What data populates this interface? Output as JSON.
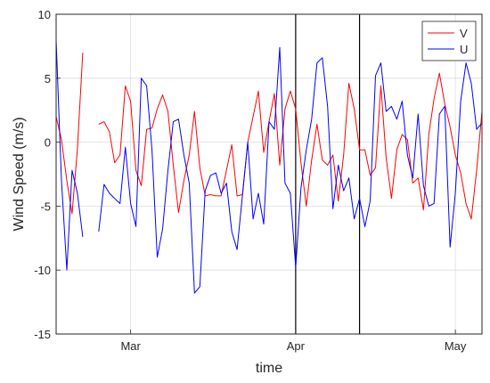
{
  "chart_data": {
    "type": "line",
    "title": "",
    "xlabel": "time",
    "ylabel": "Wind Speed (m/s)",
    "ylim": [
      -15,
      10
    ],
    "xlim": [
      "2016-02-16",
      "2016-05-06"
    ],
    "y_ticks": [
      -15,
      -10,
      -5,
      0,
      5,
      10
    ],
    "x_ticks": [
      {
        "date": "2016-03-01",
        "label": "Mar"
      },
      {
        "date": "2016-04-01",
        "label": "Apr"
      },
      {
        "date": "2016-05-01",
        "label": "May"
      }
    ],
    "grid": true,
    "legend": "top-right",
    "vertical_lines": [
      "2016-04-01",
      "2016-04-13"
    ],
    "series": [
      {
        "name": "V",
        "color": "#ff0000",
        "values": [
          [
            "2016-02-16",
            2.0
          ],
          [
            "2016-02-17",
            0.2
          ],
          [
            "2016-02-18",
            -3.0
          ],
          [
            "2016-02-19",
            -5.6
          ],
          [
            "2016-02-20",
            -0.5
          ],
          [
            "2016-02-21",
            7.0
          ],
          [
            "2016-02-23",
            null
          ],
          [
            "2016-02-24",
            1.4
          ],
          [
            "2016-02-25",
            1.6
          ],
          [
            "2016-02-26",
            0.8
          ],
          [
            "2016-02-27",
            -1.6
          ],
          [
            "2016-02-28",
            -1.0
          ],
          [
            "2016-02-29",
            4.4
          ],
          [
            "2016-03-01",
            3.2
          ],
          [
            "2016-03-02",
            -2.2
          ],
          [
            "2016-03-03",
            -3.4
          ],
          [
            "2016-03-04",
            1.0
          ],
          [
            "2016-03-05",
            1.1
          ],
          [
            "2016-03-06",
            2.6
          ],
          [
            "2016-03-07",
            3.7
          ],
          [
            "2016-03-08",
            2.4
          ],
          [
            "2016-03-09",
            -1.8
          ],
          [
            "2016-03-10",
            -5.5
          ],
          [
            "2016-03-11",
            -3.0
          ],
          [
            "2016-03-12",
            -1.0
          ],
          [
            "2016-03-13",
            2.4
          ],
          [
            "2016-03-14",
            -2.0
          ],
          [
            "2016-03-15",
            -4.2
          ],
          [
            "2016-03-16",
            -4.1
          ],
          [
            "2016-03-17",
            -4.2
          ],
          [
            "2016-03-18",
            -4.2
          ],
          [
            "2016-03-19",
            -2.2
          ],
          [
            "2016-03-20",
            -0.2
          ],
          [
            "2016-03-21",
            -4.2
          ],
          [
            "2016-03-22",
            -4.1
          ],
          [
            "2016-03-23",
            0.0
          ],
          [
            "2016-03-24",
            2.0
          ],
          [
            "2016-03-25",
            4.0
          ],
          [
            "2016-03-26",
            -0.8
          ],
          [
            "2016-03-27",
            1.6
          ],
          [
            "2016-03-28",
            3.8
          ],
          [
            "2016-03-29",
            -1.8
          ],
          [
            "2016-03-30",
            2.6
          ],
          [
            "2016-03-31",
            4.0
          ],
          [
            "2016-04-01",
            2.6
          ],
          [
            "2016-04-02",
            -1.6
          ],
          [
            "2016-04-03",
            -5.0
          ],
          [
            "2016-04-04",
            -1.4
          ],
          [
            "2016-04-05",
            1.4
          ],
          [
            "2016-04-06",
            -1.4
          ],
          [
            "2016-04-07",
            -1.8
          ],
          [
            "2016-04-08",
            -1.0
          ],
          [
            "2016-04-09",
            -4.6
          ],
          [
            "2016-04-10",
            -1.0
          ],
          [
            "2016-04-11",
            4.6
          ],
          [
            "2016-04-12",
            2.6
          ],
          [
            "2016-04-13",
            -0.6
          ],
          [
            "2016-04-14",
            -0.6
          ],
          [
            "2016-04-15",
            -2.6
          ],
          [
            "2016-04-16",
            -2.0
          ],
          [
            "2016-04-17",
            4.4
          ],
          [
            "2016-04-18",
            -1.2
          ],
          [
            "2016-04-19",
            -4.4
          ],
          [
            "2016-04-20",
            -0.6
          ],
          [
            "2016-04-21",
            0.6
          ],
          [
            "2016-04-22",
            0.2
          ],
          [
            "2016-04-23",
            -3.2
          ],
          [
            "2016-04-24",
            -2.8
          ],
          [
            "2016-04-25",
            -5.3
          ],
          [
            "2016-04-26",
            0.6
          ],
          [
            "2016-04-27",
            3.4
          ],
          [
            "2016-04-28",
            5.4
          ],
          [
            "2016-04-29",
            3.0
          ],
          [
            "2016-04-30",
            1.2
          ],
          [
            "2016-05-01",
            -1.0
          ],
          [
            "2016-05-02",
            -2.4
          ],
          [
            "2016-05-03",
            -4.8
          ],
          [
            "2016-05-04",
            -6.0
          ],
          [
            "2016-05-05",
            -2.2
          ],
          [
            "2016-05-06",
            2.4
          ]
        ]
      },
      {
        "name": "U",
        "color": "#0000ff",
        "values": [
          [
            "2016-02-16",
            8.0
          ],
          [
            "2016-02-17",
            -3.0
          ],
          [
            "2016-02-18",
            -10.0
          ],
          [
            "2016-02-19",
            -2.2
          ],
          [
            "2016-02-20",
            -4.0
          ],
          [
            "2016-02-21",
            -7.4
          ],
          [
            "2016-02-23",
            null
          ],
          [
            "2016-02-24",
            -7.0
          ],
          [
            "2016-02-25",
            -3.3
          ],
          [
            "2016-02-26",
            -4.0
          ],
          [
            "2016-02-27",
            -4.4
          ],
          [
            "2016-02-28",
            -4.8
          ],
          [
            "2016-02-29",
            -0.4
          ],
          [
            "2016-03-01",
            -4.8
          ],
          [
            "2016-03-02",
            -6.6
          ],
          [
            "2016-03-03",
            5.0
          ],
          [
            "2016-03-04",
            4.4
          ],
          [
            "2016-03-05",
            -0.6
          ],
          [
            "2016-03-06",
            -9.0
          ],
          [
            "2016-03-07",
            -6.8
          ],
          [
            "2016-03-08",
            -2.2
          ],
          [
            "2016-03-09",
            1.6
          ],
          [
            "2016-03-10",
            1.8
          ],
          [
            "2016-03-11",
            -1.0
          ],
          [
            "2016-03-12",
            -3.2
          ],
          [
            "2016-03-13",
            -11.8
          ],
          [
            "2016-03-14",
            -11.3
          ],
          [
            "2016-03-15",
            -3.8
          ],
          [
            "2016-03-16",
            -2.6
          ],
          [
            "2016-03-17",
            -2.4
          ],
          [
            "2016-03-18",
            -4.0
          ],
          [
            "2016-03-19",
            -3.2
          ],
          [
            "2016-03-20",
            -7.0
          ],
          [
            "2016-03-21",
            -8.4
          ],
          [
            "2016-03-22",
            -4.2
          ],
          [
            "2016-03-23",
            0.0
          ],
          [
            "2016-03-24",
            -6.0
          ],
          [
            "2016-03-25",
            -4.0
          ],
          [
            "2016-03-26",
            -6.4
          ],
          [
            "2016-03-27",
            1.6
          ],
          [
            "2016-03-28",
            1.0
          ],
          [
            "2016-03-29",
            7.4
          ],
          [
            "2016-03-30",
            -3.2
          ],
          [
            "2016-03-31",
            -4.0
          ],
          [
            "2016-04-01",
            -9.8
          ],
          [
            "2016-04-02",
            -3.6
          ],
          [
            "2016-04-03",
            -0.6
          ],
          [
            "2016-04-04",
            1.8
          ],
          [
            "2016-04-05",
            6.2
          ],
          [
            "2016-04-06",
            6.6
          ],
          [
            "2016-04-07",
            2.8
          ],
          [
            "2016-04-08",
            -5.2
          ],
          [
            "2016-04-09",
            -1.8
          ],
          [
            "2016-04-10",
            -3.8
          ],
          [
            "2016-04-11",
            -2.8
          ],
          [
            "2016-04-12",
            -6.0
          ],
          [
            "2016-04-13",
            -4.4
          ],
          [
            "2016-04-14",
            -6.6
          ],
          [
            "2016-04-15",
            -4.6
          ],
          [
            "2016-04-16",
            5.2
          ],
          [
            "2016-04-17",
            6.2
          ],
          [
            "2016-04-18",
            2.4
          ],
          [
            "2016-04-19",
            2.8
          ],
          [
            "2016-04-20",
            1.8
          ],
          [
            "2016-04-21",
            3.2
          ],
          [
            "2016-04-22",
            -1.0
          ],
          [
            "2016-04-23",
            -2.8
          ],
          [
            "2016-04-24",
            2.2
          ],
          [
            "2016-04-25",
            -3.4
          ],
          [
            "2016-04-26",
            -5.0
          ],
          [
            "2016-04-27",
            -4.8
          ],
          [
            "2016-04-28",
            2.2
          ],
          [
            "2016-04-29",
            2.8
          ],
          [
            "2016-04-30",
            -8.2
          ],
          [
            "2016-05-01",
            -4.0
          ],
          [
            "2016-05-02",
            3.2
          ],
          [
            "2016-05-03",
            6.2
          ],
          [
            "2016-05-04",
            4.6
          ],
          [
            "2016-05-05",
            1.0
          ],
          [
            "2016-05-06",
            1.5
          ]
        ]
      }
    ]
  }
}
